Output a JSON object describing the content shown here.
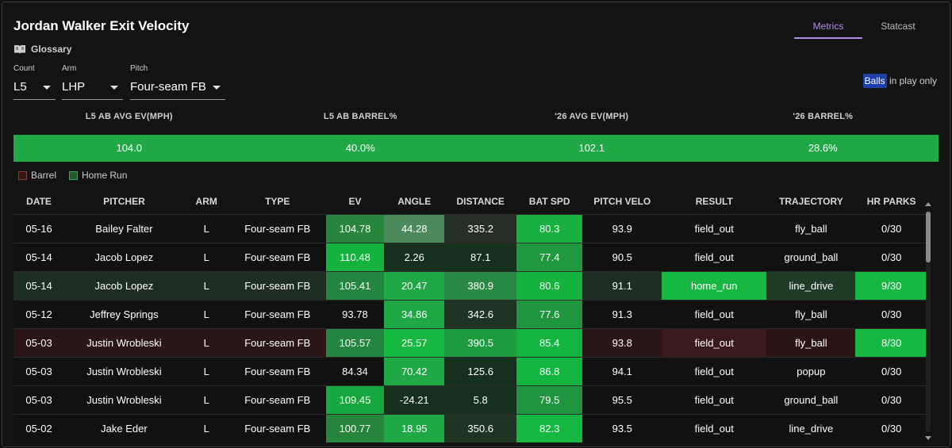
{
  "title": "Jordan Walker Exit Velocity",
  "glossary_label": "Glossary",
  "tabs": [
    {
      "label": "Metrics",
      "active": true
    },
    {
      "label": "Statcast",
      "active": false
    }
  ],
  "filters": {
    "count": {
      "label": "Count",
      "value": "L5"
    },
    "arm": {
      "label": "Arm",
      "value": "LHP"
    },
    "pitch": {
      "label": "Pitch",
      "value": "Four-seam FB"
    }
  },
  "balls_toggle": {
    "chip": "Balls",
    "rest": " in play only"
  },
  "summary": {
    "labels": [
      "L5 AB AVG EV(MPH)",
      "L5 AB BARREL%",
      "'26 AVG EV(MPH)",
      "'26 BARREL%"
    ],
    "values": [
      "104.0",
      "40.0%",
      "102.1",
      "28.6%"
    ]
  },
  "legend": {
    "barrel": "Barrel",
    "home_run": "Home Run"
  },
  "colors": {
    "accent": "#b48ae8",
    "summary_green": "#1fa845",
    "chip_blue": "#1d3fa8"
  },
  "table": {
    "headers": [
      "DATE",
      "PITCHER",
      "ARM",
      "TYPE",
      "EV",
      "ANGLE",
      "DISTANCE",
      "BAT SPD",
      "PITCH VELO",
      "RESULT",
      "TRAJECTORY",
      "HR PARKS"
    ],
    "rows": [
      {
        "cells": [
          "05-16",
          "Bailey Falter",
          "L",
          "Four-seam FB",
          "104.78",
          "44.28",
          "335.2",
          "80.3",
          "93.9",
          "field_out",
          "fly_ball",
          "0/30"
        ],
        "colors": [
          null,
          null,
          null,
          null,
          "#27853c",
          "#4a8a5a",
          "#262e28",
          "#18b040",
          null,
          null,
          null,
          null
        ],
        "row_bg": "#111111"
      },
      {
        "cells": [
          "05-14",
          "Jacob Lopez",
          "L",
          "Four-seam FB",
          "110.48",
          "2.26",
          "87.1",
          "77.4",
          "90.5",
          "field_out",
          "ground_ball",
          "0/30"
        ],
        "colors": [
          null,
          null,
          null,
          null,
          "#16b23e",
          "#15301d",
          "#15301d",
          "#1f9840",
          null,
          null,
          null,
          null
        ],
        "row_bg": "#111111"
      },
      {
        "cells": [
          "05-14",
          "Jacob Lopez",
          "L",
          "Four-seam FB",
          "105.41",
          "20.47",
          "380.9",
          "80.6",
          "91.1",
          "home_run",
          "line_drive",
          "9/30"
        ],
        "colors": [
          null,
          null,
          null,
          null,
          "#238540",
          "#1fa845",
          "#2a8a45",
          "#16b23e",
          null,
          "#17b841",
          "#1f3d26",
          "#17b841"
        ],
        "row_bg": "#1e2e22"
      },
      {
        "cells": [
          "05-12",
          "Jeffrey Springs",
          "L",
          "Four-seam FB",
          "93.78",
          "34.86",
          "342.6",
          "77.6",
          "91.3",
          "field_out",
          "fly_ball",
          "0/30"
        ],
        "colors": [
          null,
          null,
          null,
          null,
          null,
          "#1fa845",
          "#1e3524",
          "#209540",
          null,
          null,
          null,
          null
        ],
        "row_bg": "#111111"
      },
      {
        "cells": [
          "05-03",
          "Justin Wrobleski",
          "L",
          "Four-seam FB",
          "105.57",
          "25.57",
          "390.5",
          "85.4",
          "93.8",
          "field_out",
          "fly_ball",
          "8/30"
        ],
        "colors": [
          null,
          null,
          null,
          null,
          "#238540",
          "#17b841",
          "#1c9c3e",
          "#14b440",
          null,
          "#3a1a1a",
          "#2a1414",
          "#17b841"
        ],
        "row_bg": "#2a1616"
      },
      {
        "cells": [
          "05-03",
          "Justin Wrobleski",
          "L",
          "Four-seam FB",
          "84.34",
          "70.42",
          "125.6",
          "86.8",
          "94.1",
          "field_out",
          "popup",
          "0/30"
        ],
        "colors": [
          null,
          null,
          null,
          null,
          null,
          "#1fa845",
          "#15301d",
          "#14b440",
          null,
          null,
          null,
          null
        ],
        "row_bg": "#111111"
      },
      {
        "cells": [
          "05-03",
          "Justin Wrobleski",
          "L",
          "Four-seam FB",
          "109.45",
          "-24.21",
          "5.8",
          "79.5",
          "95.5",
          "field_out",
          "ground_ball",
          "0/30"
        ],
        "colors": [
          null,
          null,
          null,
          null,
          "#16a83e",
          "#15301d",
          "#15301d",
          "#209540",
          null,
          null,
          null,
          null
        ],
        "row_bg": "#111111"
      },
      {
        "cells": [
          "05-02",
          "Jake Eder",
          "L",
          "Four-seam FB",
          "100.77",
          "18.95",
          "350.6",
          "82.3",
          "93.5",
          "field_out",
          "line_drive",
          "0/30"
        ],
        "colors": [
          null,
          null,
          null,
          null,
          "#27853c",
          "#1fa845",
          "#1e3524",
          "#17b841",
          null,
          null,
          null,
          null
        ],
        "row_bg": "#111111"
      }
    ]
  }
}
